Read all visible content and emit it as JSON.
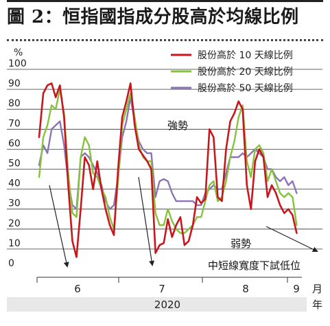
{
  "title": "圖 2：恒指國指成分股高於均線比例",
  "chart_data": {
    "type": "line",
    "ylabel": "%",
    "ylim": [
      0,
      100
    ],
    "yticks": [
      "0",
      "10",
      "20",
      "30",
      "40",
      "50",
      "60",
      "70",
      "80",
      "90",
      "100"
    ],
    "month_ticks": [
      6,
      7,
      8,
      9
    ],
    "month_labels": [
      "6",
      "7",
      "8",
      "9"
    ],
    "month_unit": "月",
    "year_label": "2020",
    "year_unit": "年",
    "grid": "horizontal",
    "legend_position": "top-right",
    "annotations": [
      "強勢",
      "弱勢",
      "中短線寬度下試低位"
    ],
    "series": [
      {
        "name": "股份高於 10 天線比例",
        "color": "#c8161d",
        "points": [
          [
            5.02,
            66
          ],
          [
            5.06,
            88
          ],
          [
            5.1,
            92
          ],
          [
            5.14,
            93
          ],
          [
            5.18,
            86
          ],
          [
            5.22,
            92
          ],
          [
            5.26,
            76
          ],
          [
            5.3,
            42
          ],
          [
            5.34,
            14
          ],
          [
            5.38,
            6
          ],
          [
            5.42,
            30
          ],
          [
            5.46,
            56
          ],
          [
            5.5,
            52
          ],
          [
            5.54,
            40
          ],
          [
            5.58,
            54
          ],
          [
            5.62,
            40
          ],
          [
            5.66,
            30
          ],
          [
            5.7,
            22
          ],
          [
            5.74,
            17
          ],
          [
            5.78,
            50
          ],
          [
            5.82,
            76
          ],
          [
            5.86,
            84
          ],
          [
            5.9,
            93
          ],
          [
            5.94,
            72
          ],
          [
            5.98,
            60
          ],
          [
            6.02,
            57
          ],
          [
            6.06,
            54
          ],
          [
            6.1,
            50
          ],
          [
            6.14,
            8
          ],
          [
            6.18,
            12
          ],
          [
            6.22,
            13
          ],
          [
            6.26,
            25
          ],
          [
            6.3,
            16
          ],
          [
            6.34,
            22
          ],
          [
            6.38,
            26
          ],
          [
            6.42,
            12
          ],
          [
            6.46,
            14
          ],
          [
            6.5,
            22
          ],
          [
            6.54,
            36
          ],
          [
            6.58,
            33
          ],
          [
            6.62,
            35
          ],
          [
            6.66,
            70
          ],
          [
            6.7,
            66
          ],
          [
            6.74,
            36
          ],
          [
            6.78,
            34
          ],
          [
            6.82,
            60
          ],
          [
            6.86,
            74
          ],
          [
            6.9,
            78
          ],
          [
            6.94,
            84
          ],
          [
            6.98,
            80
          ],
          [
            7.02,
            42
          ],
          [
            7.06,
            30
          ],
          [
            7.1,
            54
          ],
          [
            7.14,
            60
          ],
          [
            7.18,
            56
          ],
          [
            7.22,
            36
          ],
          [
            7.26,
            42
          ],
          [
            7.3,
            38
          ],
          [
            7.34,
            32
          ],
          [
            7.38,
            28
          ],
          [
            7.42,
            30
          ],
          [
            7.46,
            27
          ],
          [
            7.5,
            18
          ]
        ]
      },
      {
        "name": "股份高於 20 天線比例",
        "color": "#86c23c",
        "points": [
          [
            5.02,
            46
          ],
          [
            5.06,
            66
          ],
          [
            5.1,
            72
          ],
          [
            5.14,
            82
          ],
          [
            5.18,
            80
          ],
          [
            5.22,
            90
          ],
          [
            5.26,
            78
          ],
          [
            5.3,
            48
          ],
          [
            5.34,
            28
          ],
          [
            5.38,
            26
          ],
          [
            5.42,
            56
          ],
          [
            5.46,
            66
          ],
          [
            5.5,
            62
          ],
          [
            5.54,
            48
          ],
          [
            5.58,
            46
          ],
          [
            5.62,
            40
          ],
          [
            5.66,
            36
          ],
          [
            5.7,
            26
          ],
          [
            5.74,
            20
          ],
          [
            5.78,
            44
          ],
          [
            5.82,
            72
          ],
          [
            5.86,
            80
          ],
          [
            5.9,
            88
          ],
          [
            5.94,
            76
          ],
          [
            5.98,
            62
          ],
          [
            6.02,
            56
          ],
          [
            6.06,
            54
          ],
          [
            6.1,
            54
          ],
          [
            6.14,
            28
          ],
          [
            6.18,
            22
          ],
          [
            6.22,
            22
          ],
          [
            6.26,
            30
          ],
          [
            6.3,
            24
          ],
          [
            6.34,
            20
          ],
          [
            6.38,
            18
          ],
          [
            6.42,
            18
          ],
          [
            6.46,
            20
          ],
          [
            6.5,
            22
          ],
          [
            6.54,
            26
          ],
          [
            6.58,
            26
          ],
          [
            6.62,
            34
          ],
          [
            6.66,
            42
          ],
          [
            6.7,
            44
          ],
          [
            6.74,
            34
          ],
          [
            6.78,
            36
          ],
          [
            6.82,
            44
          ],
          [
            6.86,
            56
          ],
          [
            6.9,
            64
          ],
          [
            6.94,
            76
          ],
          [
            6.98,
            82
          ],
          [
            7.02,
            54
          ],
          [
            7.06,
            46
          ],
          [
            7.1,
            60
          ],
          [
            7.14,
            62
          ],
          [
            7.18,
            58
          ],
          [
            7.22,
            44
          ],
          [
            7.26,
            50
          ],
          [
            7.3,
            44
          ],
          [
            7.34,
            38
          ],
          [
            7.38,
            36
          ],
          [
            7.42,
            38
          ],
          [
            7.46,
            36
          ],
          [
            7.5,
            22
          ]
        ]
      },
      {
        "name": "股份高於 50 天線比例",
        "color": "#8b74b6",
        "points": [
          [
            5.02,
            52
          ],
          [
            5.06,
            62
          ],
          [
            5.1,
            58
          ],
          [
            5.14,
            70
          ],
          [
            5.18,
            72
          ],
          [
            5.22,
            74
          ],
          [
            5.26,
            62
          ],
          [
            5.3,
            44
          ],
          [
            5.34,
            32
          ],
          [
            5.38,
            30
          ],
          [
            5.42,
            56
          ],
          [
            5.46,
            58
          ],
          [
            5.5,
            56
          ],
          [
            5.54,
            52
          ],
          [
            5.58,
            48
          ],
          [
            5.62,
            42
          ],
          [
            5.66,
            34
          ],
          [
            5.7,
            30
          ],
          [
            5.74,
            32
          ],
          [
            5.78,
            46
          ],
          [
            5.82,
            66
          ],
          [
            5.86,
            74
          ],
          [
            5.9,
            86
          ],
          [
            5.94,
            74
          ],
          [
            5.98,
            64
          ],
          [
            6.02,
            60
          ],
          [
            6.06,
            58
          ],
          [
            6.1,
            58
          ],
          [
            6.14,
            36
          ],
          [
            6.18,
            44
          ],
          [
            6.22,
            45
          ],
          [
            6.26,
            44
          ],
          [
            6.3,
            38
          ],
          [
            6.34,
            34
          ],
          [
            6.38,
            34
          ],
          [
            6.42,
            34
          ],
          [
            6.46,
            34
          ],
          [
            6.5,
            34
          ],
          [
            6.54,
            32
          ],
          [
            6.58,
            32
          ],
          [
            6.62,
            38
          ],
          [
            6.66,
            40
          ],
          [
            6.7,
            42
          ],
          [
            6.74,
            40
          ],
          [
            6.78,
            40
          ],
          [
            6.82,
            48
          ],
          [
            6.86,
            56
          ],
          [
            6.9,
            56
          ],
          [
            6.94,
            56
          ],
          [
            6.98,
            58
          ],
          [
            7.02,
            56
          ],
          [
            7.06,
            58
          ],
          [
            7.1,
            60
          ],
          [
            7.14,
            58
          ],
          [
            7.18,
            56
          ],
          [
            7.22,
            50
          ],
          [
            7.26,
            50
          ],
          [
            7.3,
            46
          ],
          [
            7.34,
            44
          ],
          [
            7.38,
            46
          ],
          [
            7.42,
            42
          ],
          [
            7.46,
            44
          ],
          [
            7.5,
            38
          ]
        ]
      }
    ]
  }
}
